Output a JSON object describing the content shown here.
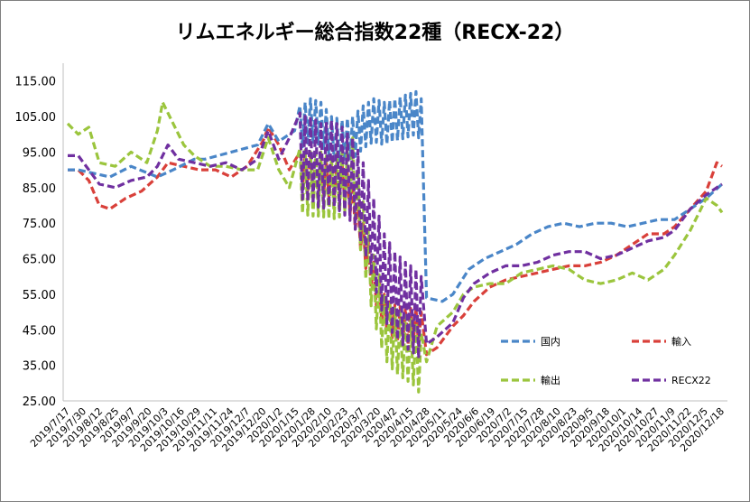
{
  "chart_data": {
    "type": "line",
    "title": "リムエネルギー総合指数22種（RECX-22）",
    "xlabel": "",
    "ylabel": "",
    "ylim": [
      25,
      120
    ],
    "yticks": [
      "25.00",
      "35.00",
      "45.00",
      "55.00",
      "65.00",
      "75.00",
      "85.00",
      "95.00",
      "105.00",
      "115.00"
    ],
    "grid": false,
    "legend_position": "bottom-right",
    "x_tick_labels": [
      "2019/7/17",
      "2019/7/30",
      "2019/8/12",
      "2019/8/25",
      "2019/9/7",
      "2019/9/20",
      "2019/10/3",
      "2019/10/16",
      "2019/10/29",
      "2019/11/11",
      "2019/11/24",
      "2019/12/7",
      "2019/12/20",
      "2020/1/2",
      "2020/1/15",
      "2020/1/28",
      "2020/2/10",
      "2020/2/23",
      "2020/3/7",
      "2020/3/20",
      "2020/4/2",
      "2020/4/15",
      "2020/4/28",
      "2020/5/11",
      "2020/5/24",
      "2020/6/6",
      "2020/6/19",
      "2020/7/2",
      "2020/7/15",
      "2020/7/28",
      "2020/8/10",
      "2020/8/23",
      "2020/9/5",
      "2020/9/18",
      "2020/10/1",
      "2020/10/14",
      "2020/10/27",
      "2020/11/9",
      "2020/11/22",
      "2020/12/5",
      "2020/12/18"
    ],
    "series": [
      {
        "name": "国内",
        "color": "#4a86c8",
        "points": [
          [
            0,
            90
          ],
          [
            2,
            90
          ],
          [
            5,
            89
          ],
          [
            8,
            88
          ],
          [
            12,
            91
          ],
          [
            17,
            88
          ],
          [
            20,
            90
          ],
          [
            24,
            93
          ],
          [
            26,
            93
          ],
          [
            31,
            95
          ],
          [
            36,
            97
          ],
          [
            38,
            103
          ],
          [
            40,
            98
          ],
          [
            43,
            101
          ],
          [
            46,
            104
          ],
          [
            48,
            103
          ],
          [
            50,
            99
          ],
          [
            52,
            98
          ],
          [
            54,
            99
          ],
          [
            56,
            102
          ],
          [
            58,
            104
          ],
          [
            60,
            103
          ],
          [
            62,
            104
          ],
          [
            64,
            105
          ],
          [
            66,
            106
          ],
          [
            67,
            104
          ],
          [
            68,
            54
          ],
          [
            71,
            53
          ],
          [
            73,
            55
          ],
          [
            76,
            62
          ],
          [
            79,
            65
          ],
          [
            82,
            67
          ],
          [
            85,
            69
          ],
          [
            88,
            72
          ],
          [
            91,
            74
          ],
          [
            94,
            75
          ],
          [
            97,
            74
          ],
          [
            100,
            75
          ],
          [
            103,
            75
          ],
          [
            106,
            74
          ],
          [
            109,
            75
          ],
          [
            112,
            76
          ],
          [
            115,
            76
          ],
          [
            118,
            79
          ],
          [
            121,
            82
          ],
          [
            124,
            86
          ]
        ]
      },
      {
        "name": "輸入",
        "color": "#d9403a",
        "points": [
          [
            0,
            90
          ],
          [
            2,
            90
          ],
          [
            4,
            87
          ],
          [
            6,
            80
          ],
          [
            8,
            79
          ],
          [
            11,
            82
          ],
          [
            14,
            84
          ],
          [
            17,
            88
          ],
          [
            19,
            92
          ],
          [
            22,
            91
          ],
          [
            25,
            90
          ],
          [
            28,
            90
          ],
          [
            31,
            88
          ],
          [
            34,
            91
          ],
          [
            37,
            98
          ],
          [
            38,
            102
          ],
          [
            40,
            97
          ],
          [
            42,
            90
          ],
          [
            44,
            90
          ],
          [
            46,
            89
          ],
          [
            48,
            88
          ],
          [
            50,
            87
          ],
          [
            52,
            87
          ],
          [
            54,
            81
          ],
          [
            56,
            70
          ],
          [
            58,
            59
          ],
          [
            60,
            50
          ],
          [
            62,
            47
          ],
          [
            64,
            46
          ],
          [
            66,
            46
          ],
          [
            67,
            45
          ],
          [
            68,
            38
          ],
          [
            70,
            40
          ],
          [
            73,
            46
          ],
          [
            75,
            49
          ],
          [
            77,
            53
          ],
          [
            80,
            57
          ],
          [
            83,
            59
          ],
          [
            86,
            60
          ],
          [
            89,
            61
          ],
          [
            92,
            62
          ],
          [
            95,
            63
          ],
          [
            98,
            63
          ],
          [
            101,
            64
          ],
          [
            104,
            66
          ],
          [
            107,
            69
          ],
          [
            110,
            72
          ],
          [
            113,
            72
          ],
          [
            115,
            74
          ],
          [
            118,
            79
          ],
          [
            121,
            84
          ],
          [
            123,
            92
          ],
          [
            124,
            91
          ]
        ]
      },
      {
        "name": "輸出",
        "color": "#9bc53d",
        "points": [
          [
            0,
            103
          ],
          [
            2,
            100
          ],
          [
            4,
            102
          ],
          [
            6,
            92
          ],
          [
            9,
            91
          ],
          [
            12,
            95
          ],
          [
            15,
            92
          ],
          [
            17,
            101
          ],
          [
            18,
            109
          ],
          [
            20,
            103
          ],
          [
            22,
            97
          ],
          [
            24,
            94
          ],
          [
            27,
            91
          ],
          [
            30,
            91
          ],
          [
            33,
            90
          ],
          [
            36,
            90
          ],
          [
            38,
            99
          ],
          [
            40,
            90
          ],
          [
            42,
            85
          ],
          [
            44,
            87
          ],
          [
            46,
            86
          ],
          [
            48,
            86
          ],
          [
            50,
            85
          ],
          [
            52,
            86
          ],
          [
            54,
            90
          ],
          [
            56,
            72
          ],
          [
            58,
            57
          ],
          [
            60,
            46
          ],
          [
            62,
            42
          ],
          [
            64,
            40
          ],
          [
            66,
            38
          ],
          [
            67,
            35
          ],
          [
            68,
            36
          ],
          [
            70,
            46
          ],
          [
            73,
            50
          ],
          [
            75,
            55
          ],
          [
            77,
            57
          ],
          [
            80,
            58
          ],
          [
            83,
            58
          ],
          [
            86,
            61
          ],
          [
            89,
            62
          ],
          [
            92,
            63
          ],
          [
            95,
            62
          ],
          [
            98,
            59
          ],
          [
            101,
            58
          ],
          [
            104,
            59
          ],
          [
            107,
            61
          ],
          [
            110,
            59
          ],
          [
            113,
            62
          ],
          [
            115,
            66
          ],
          [
            118,
            73
          ],
          [
            121,
            82
          ],
          [
            123,
            80
          ],
          [
            124,
            78
          ]
        ]
      },
      {
        "name": "RECX22",
        "color": "#7030a0",
        "points": [
          [
            0,
            94
          ],
          [
            2,
            94
          ],
          [
            4,
            90
          ],
          [
            6,
            86
          ],
          [
            9,
            85
          ],
          [
            12,
            87
          ],
          [
            15,
            88
          ],
          [
            17,
            91
          ],
          [
            19,
            97
          ],
          [
            21,
            93
          ],
          [
            24,
            92
          ],
          [
            27,
            91
          ],
          [
            30,
            92
          ],
          [
            33,
            90
          ],
          [
            36,
            93
          ],
          [
            38,
            101
          ],
          [
            40,
            93
          ],
          [
            42,
            99
          ],
          [
            44,
            94
          ],
          [
            46,
            93
          ],
          [
            48,
            91
          ],
          [
            50,
            92
          ],
          [
            52,
            90
          ],
          [
            54,
            87
          ],
          [
            56,
            80
          ],
          [
            58,
            70
          ],
          [
            60,
            60
          ],
          [
            62,
            55
          ],
          [
            64,
            52
          ],
          [
            66,
            50
          ],
          [
            67,
            48
          ],
          [
            68,
            41
          ],
          [
            70,
            43
          ],
          [
            73,
            47
          ],
          [
            75,
            54
          ],
          [
            77,
            58
          ],
          [
            80,
            61
          ],
          [
            83,
            63
          ],
          [
            86,
            63
          ],
          [
            89,
            64
          ],
          [
            92,
            66
          ],
          [
            95,
            67
          ],
          [
            98,
            67
          ],
          [
            101,
            65
          ],
          [
            104,
            66
          ],
          [
            107,
            68
          ],
          [
            110,
            70
          ],
          [
            113,
            71
          ],
          [
            115,
            73
          ],
          [
            118,
            79
          ],
          [
            121,
            83
          ],
          [
            124,
            86
          ]
        ]
      }
    ]
  }
}
